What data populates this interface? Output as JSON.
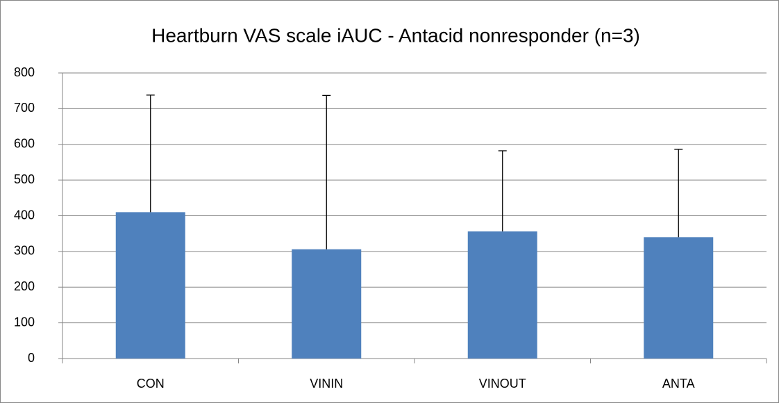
{
  "chart_data": {
    "type": "bar",
    "title": "Heartburn VAS scale iAUC - Antacid nonresponder (n=3)",
    "categories": [
      "CON",
      "VININ",
      "VINOUT",
      "ANTA"
    ],
    "values": [
      410,
      306,
      356,
      340
    ],
    "errors": [
      328,
      431,
      226,
      246
    ],
    "color": "#4f81bd",
    "ylim": [
      0,
      800
    ],
    "yticks": [
      0,
      100,
      200,
      300,
      400,
      500,
      600,
      700,
      800
    ],
    "grid": true
  }
}
